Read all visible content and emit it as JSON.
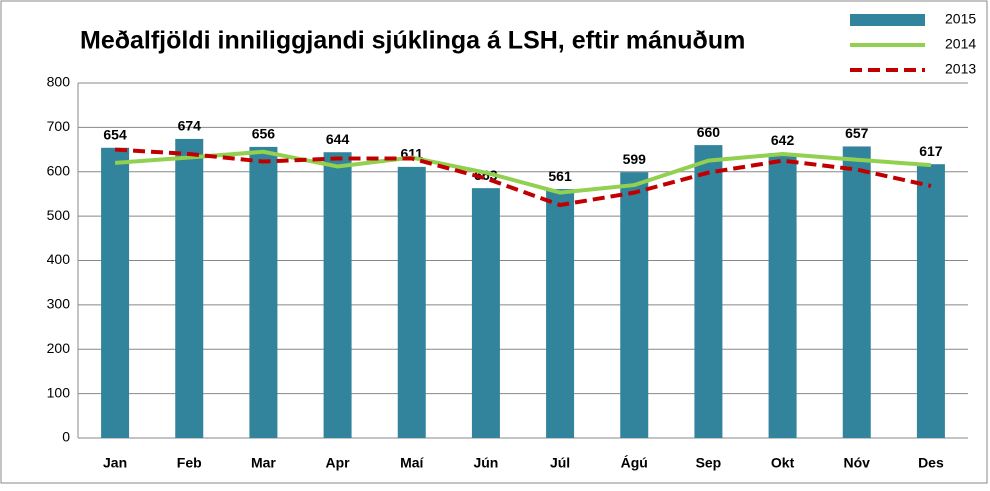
{
  "chart_data": {
    "type": "bar",
    "title": "Meðalfjöldi inniliggjandi sjúklinga á LSH, eftir mánuðum",
    "categories": [
      "Jan",
      "Feb",
      "Mar",
      "Apr",
      "Maí",
      "Jún",
      "Júl",
      "Ágú",
      "Sep",
      "Okt",
      "Nóv",
      "Des"
    ],
    "series": [
      {
        "name": "2015",
        "type": "bar",
        "color": "#31849b",
        "values": [
          654,
          674,
          656,
          644,
          611,
          563,
          561,
          599,
          660,
          642,
          657,
          617
        ]
      },
      {
        "name": "2014",
        "type": "line",
        "color": "#92d050",
        "values": [
          620,
          632,
          645,
          612,
          632,
          598,
          553,
          570,
          625,
          640,
          627,
          615
        ]
      },
      {
        "name": "2013",
        "type": "line",
        "color": "#c00000",
        "dashed": true,
        "values": [
          650,
          640,
          623,
          630,
          630,
          585,
          525,
          553,
          598,
          625,
          605,
          568
        ]
      }
    ],
    "ylim": [
      0,
      800
    ],
    "yticks": [
      0,
      100,
      200,
      300,
      400,
      500,
      600,
      700,
      800
    ],
    "grid": true,
    "legend": "top-right"
  }
}
